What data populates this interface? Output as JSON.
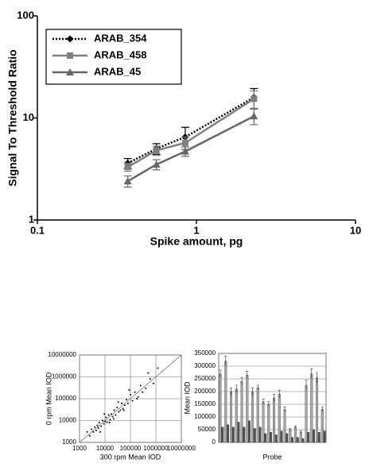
{
  "chart_data": [
    {
      "type": "line",
      "xlabel": "Spike amount, pg",
      "ylabel": "Signal To Threshold Ratio",
      "xlog": true,
      "ylog": true,
      "xlim": [
        0.1,
        10
      ],
      "ylim": [
        1,
        100
      ],
      "xticks": [
        0.1,
        1,
        10
      ],
      "yticks": [
        1,
        10,
        100
      ],
      "grid": false,
      "legend": "upper left",
      "x": [
        0.37,
        0.56,
        0.85,
        2.3
      ],
      "series": [
        {
          "name": "ARAB_354",
          "color": "#000000",
          "dash": "dotted",
          "marker": "diamond",
          "values": [
            3.6,
            5.0,
            6.5,
            15.9
          ],
          "errors": [
            0.4,
            0.6,
            1.6,
            3.5
          ]
        },
        {
          "name": "ARAB_458",
          "color": "#808080",
          "dash": "solid",
          "marker": "square",
          "values": [
            3.3,
            4.8,
            5.7,
            15.4
          ],
          "errors": [
            0.3,
            0.5,
            0.8,
            3
          ]
        },
        {
          "name": "ARAB_45",
          "color": "#666666",
          "dash": "solid",
          "marker": "triangle",
          "values": [
            2.4,
            3.5,
            4.7,
            10.4
          ],
          "errors": [
            0.3,
            0.4,
            0.5,
            1.8
          ]
        }
      ]
    },
    {
      "type": "scatter",
      "xlabel": "300 rpm Mean IOD",
      "ylabel": "0 rpm Mean IOD",
      "xlog": true,
      "ylog": true,
      "xlim": [
        1000,
        10000000
      ],
      "ylim": [
        1000,
        10000000
      ],
      "xticks": [
        1000,
        10000,
        100000,
        1000000,
        10000000
      ],
      "yticks": [
        1000,
        10000,
        100000,
        1000000,
        10000000
      ],
      "grid": true,
      "color": "#000000",
      "x": [
        3000,
        3500,
        4000,
        4500,
        5000,
        5500,
        6000,
        7000,
        8000,
        9000,
        10000,
        11000,
        12000,
        14000,
        16000,
        18000,
        20000,
        23000,
        26000,
        30000,
        35000,
        40000,
        45000,
        50000,
        60000,
        70000,
        80000,
        100000,
        120000,
        150000,
        200000,
        250000,
        300000,
        400000,
        600000,
        800000,
        1200000,
        2000,
        2500,
        6500,
        9500,
        15000,
        22000,
        33000,
        55000,
        90000,
        180000,
        500000
      ],
      "values": [
        4000,
        3000,
        5000,
        3500,
        6000,
        4500,
        8000,
        5500,
        10000,
        7000,
        9000,
        14000,
        8500,
        18000,
        11000,
        20000,
        15000,
        30000,
        18000,
        40000,
        25000,
        30000,
        60000,
        35000,
        50000,
        90000,
        60000,
        150000,
        80000,
        200000,
        120000,
        400000,
        200000,
        300000,
        800000,
        500000,
        2500000,
        3000,
        2000,
        3000,
        20000,
        8000,
        12000,
        70000,
        30000,
        250000,
        100000,
        1500000
      ]
    },
    {
      "type": "bar",
      "xlabel": "Probe",
      "ylabel": "Mean IOD",
      "ylim": [
        0,
        350000
      ],
      "yticks": [
        0,
        50000,
        100000,
        150000,
        200000,
        250000,
        300000,
        350000
      ],
      "grid": true,
      "categories": [
        null,
        null,
        null,
        null,
        null,
        null,
        null,
        null,
        null,
        null,
        null,
        null,
        null,
        null,
        null,
        null,
        null,
        null,
        null,
        null
      ],
      "series": [
        {
          "color": "#a6a6a6",
          "values": [
            270000,
            320000,
            200000,
            210000,
            240000,
            265000,
            200000,
            215000,
            160000,
            150000,
            175000,
            190000,
            130000,
            50000,
            60000,
            40000,
            225000,
            270000,
            255000,
            130000
          ],
          "errors": [
            15000,
            20000,
            15000,
            15000,
            15000,
            15000,
            15000,
            10000,
            10000,
            10000,
            15000,
            15000,
            10000,
            5000,
            5000,
            5000,
            20000,
            20000,
            20000,
            10000
          ]
        },
        {
          "color": "#505050",
          "values": [
            60000,
            70000,
            60000,
            80000,
            60000,
            85000,
            55000,
            60000,
            35000,
            40000,
            30000,
            45000,
            35000,
            20000,
            20000,
            15000,
            40000,
            50000,
            40000,
            45000
          ]
        }
      ]
    }
  ]
}
